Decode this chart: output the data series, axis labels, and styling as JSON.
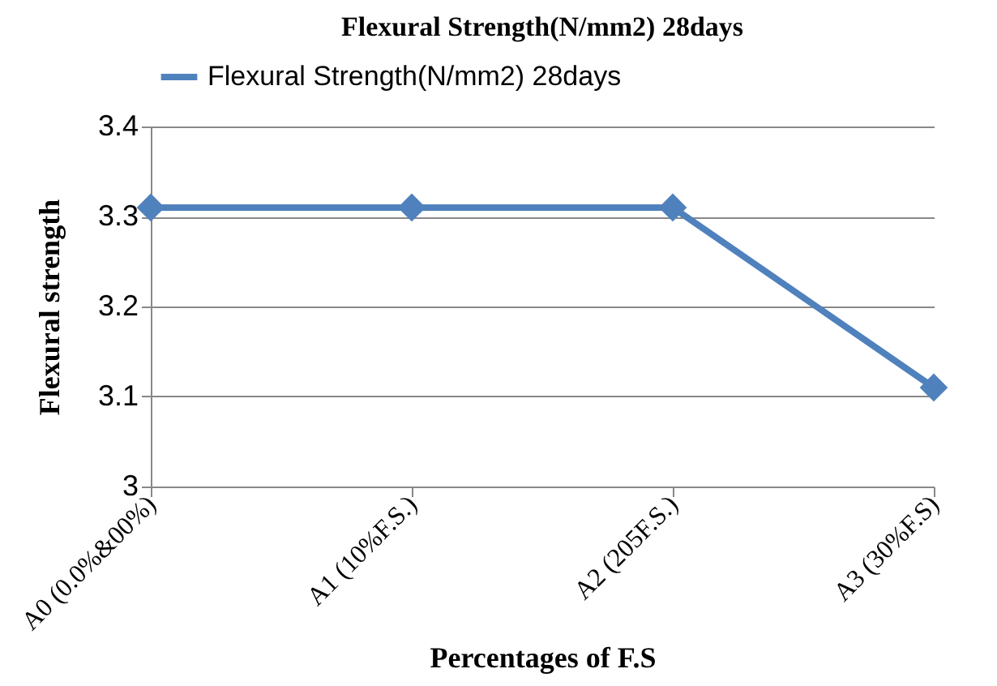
{
  "chart_data": {
    "type": "line",
    "title": "Flexural Strength(N/mm2) 28days",
    "xlabel": "Percentages of F.S",
    "ylabel": "Flexural strength",
    "categories": [
      "A0 (0.0%&00%)",
      "A1 (10%F.S.)",
      "A2 (205F.S.)",
      "A3 (30%F.S)"
    ],
    "series": [
      {
        "name": "Flexural Strength(N/mm2) 28days",
        "color": "#4f81bd",
        "values": [
          3.31,
          3.31,
          3.31,
          3.11
        ]
      }
    ],
    "ylim": [
      3,
      3.4
    ],
    "yticks": [
      3,
      3.1,
      3.2,
      3.3,
      3.4
    ],
    "grid": "y",
    "legend": "top",
    "marker": "diamond",
    "line_style": "solid"
  }
}
